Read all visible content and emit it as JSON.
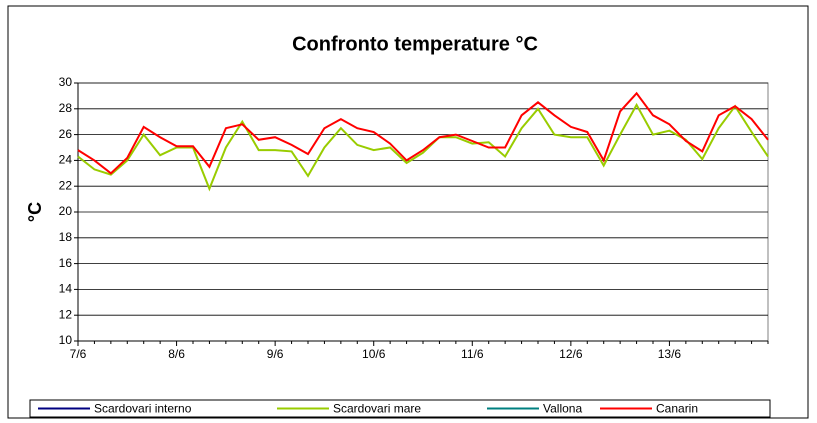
{
  "chart_data": {
    "type": "line",
    "title": "Confronto temperature °C",
    "y_label": "°C",
    "categories": [
      "7/6",
      null,
      null,
      null,
      null,
      null,
      "8/6",
      null,
      null,
      null,
      null,
      null,
      "9/6",
      null,
      null,
      null,
      null,
      null,
      "10/6",
      null,
      null,
      null,
      null,
      null,
      "11/6",
      null,
      null,
      null,
      null,
      null,
      "12/6",
      null,
      null,
      null,
      null,
      null,
      "13/6",
      null,
      null,
      null,
      null,
      null,
      null
    ],
    "series": [
      {
        "name": "Scardovari interno",
        "color": "#000080",
        "values": [
          null,
          null,
          null,
          null,
          null,
          null,
          null,
          null,
          null,
          null,
          null,
          null,
          null,
          null,
          null,
          null,
          null,
          null,
          null,
          null,
          null,
          null,
          null,
          null,
          null,
          null,
          null,
          null,
          null,
          null,
          null,
          null,
          null,
          null,
          null,
          null,
          null,
          null,
          null,
          null,
          null,
          null,
          null
        ]
      },
      {
        "name": "Scardovari mare",
        "color": "#99cc00",
        "values": [
          24.3,
          23.3,
          22.9,
          24.0,
          26.0,
          24.4,
          25.0,
          25.0,
          21.8,
          25.0,
          27.0,
          24.8,
          24.8,
          24.7,
          22.8,
          25.0,
          26.5,
          25.2,
          24.8,
          25.0,
          23.8,
          24.6,
          25.8,
          25.8,
          25.3,
          25.4,
          24.3,
          26.5,
          28.0,
          26.0,
          25.8,
          25.8,
          23.6,
          26.0,
          28.3,
          26.0,
          26.3,
          25.6,
          24.1,
          26.5,
          28.2,
          26.2,
          24.3
        ]
      },
      {
        "name": "Vallona",
        "color": "#008080",
        "values": [
          null,
          null,
          null,
          null,
          null,
          null,
          null,
          null,
          null,
          null,
          null,
          null,
          null,
          null,
          null,
          null,
          null,
          null,
          null,
          null,
          null,
          null,
          null,
          null,
          null,
          null,
          null,
          null,
          null,
          null,
          null,
          null,
          null,
          null,
          null,
          null,
          null,
          null,
          null,
          null,
          null,
          null,
          null
        ]
      },
      {
        "name": "Canarin",
        "color": "#ff0000",
        "values": [
          24.8,
          24.0,
          23.0,
          24.2,
          26.6,
          25.8,
          25.1,
          25.1,
          23.5,
          26.5,
          26.8,
          25.6,
          25.8,
          25.2,
          24.5,
          26.5,
          27.2,
          26.5,
          26.2,
          25.3,
          24.0,
          24.8,
          25.8,
          26.0,
          25.5,
          25.0,
          25.0,
          27.5,
          28.5,
          27.5,
          26.6,
          26.2,
          24.0,
          27.8,
          29.2,
          27.5,
          26.8,
          25.5,
          24.7,
          27.5,
          28.2,
          27.2,
          25.6
        ]
      }
    ],
    "ylim": [
      10,
      30
    ],
    "yticks": [
      10,
      12,
      14,
      16,
      18,
      20,
      22,
      24,
      26,
      28,
      30
    ],
    "grid": true,
    "legend": "bottom"
  }
}
